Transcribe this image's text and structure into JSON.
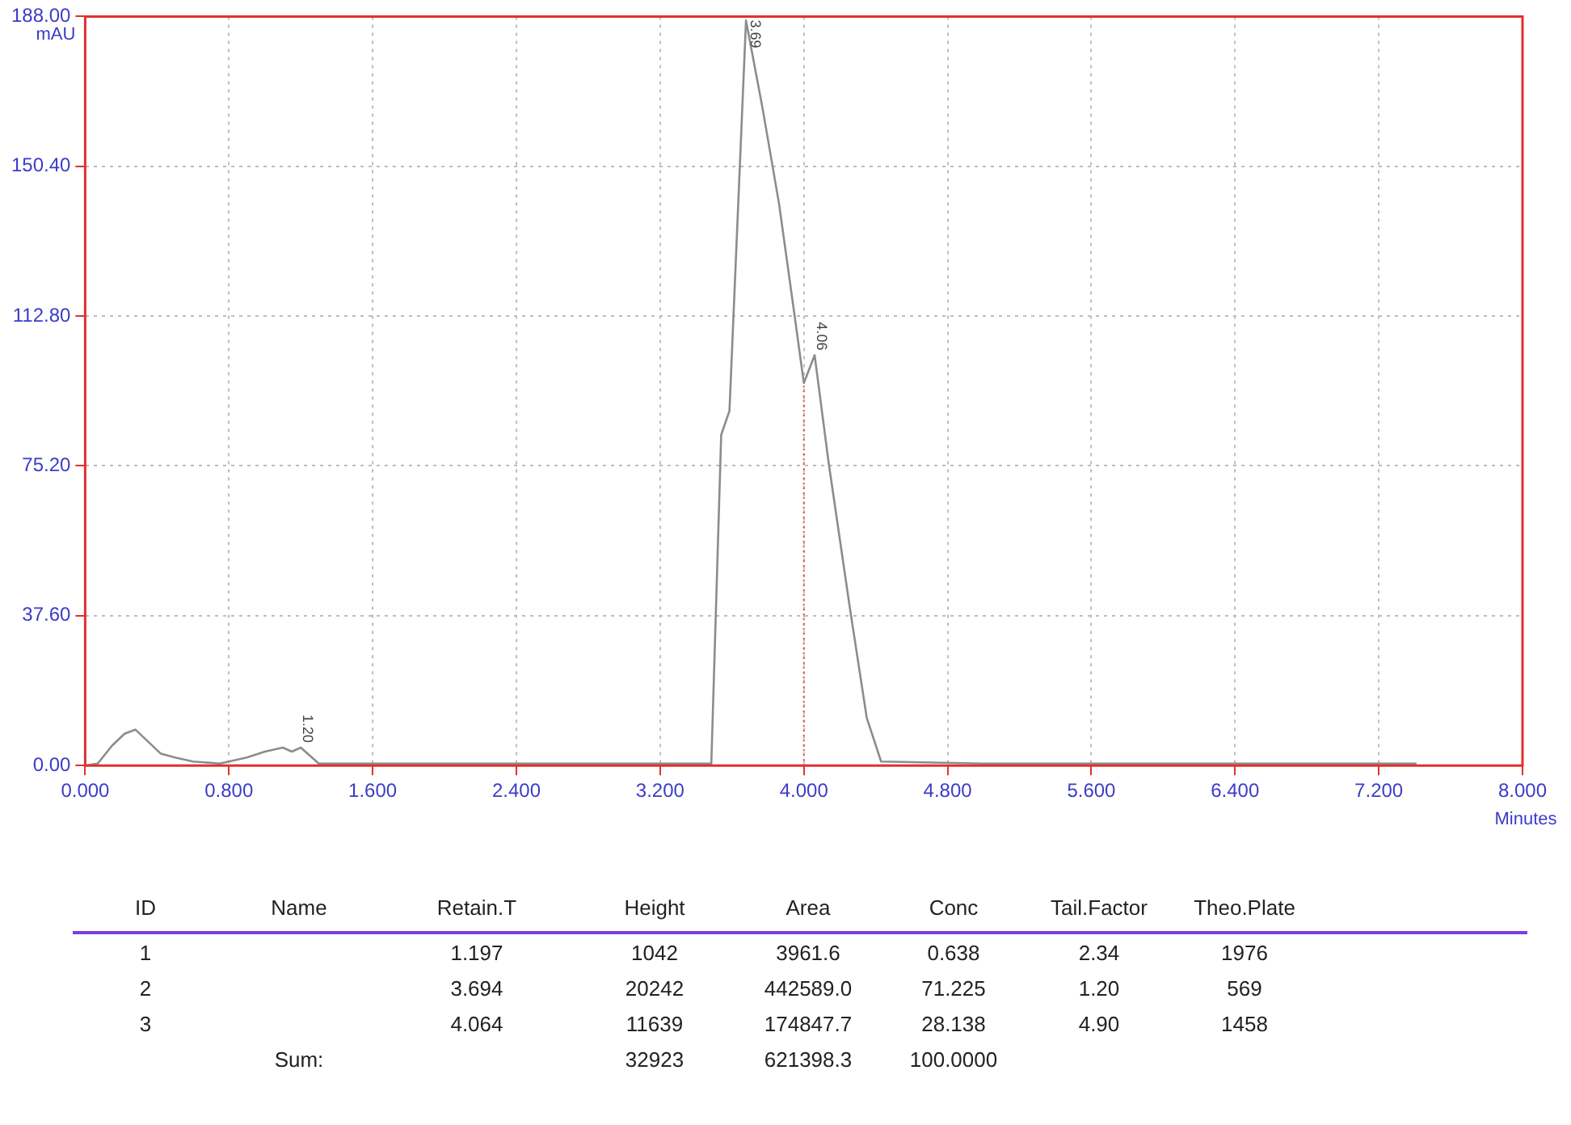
{
  "chart_data": [
    {
      "type": "line",
      "xlabel": "Minutes",
      "ylabel": "mAU",
      "x": [
        0,
        0.07,
        0.15,
        0.22,
        0.28,
        0.35,
        0.42,
        0.5,
        0.6,
        0.75,
        0.9,
        1.0,
        1.1,
        1.15,
        1.2,
        1.3,
        1.4,
        2.0,
        3.0,
        3.485,
        3.54,
        3.586,
        3.678,
        3.77,
        3.862,
        3.936,
        4.0,
        4.06,
        4.138,
        4.258,
        4.35,
        4.43,
        5.0,
        6.0,
        7.41
      ],
      "series": [
        {
          "color": "#8c8c8c",
          "values": [
            0,
            0.5,
            5,
            8,
            9,
            6,
            3,
            2,
            1,
            0.5,
            2,
            3.5,
            4.5,
            3.5,
            4.5,
            0.5,
            0.5,
            0.5,
            0.5,
            0.5,
            83,
            89,
            187,
            165,
            141,
            117,
            96,
            103,
            76,
            39,
            12,
            1,
            0.5,
            0.5,
            0.5
          ]
        }
      ],
      "xlim": [
        0,
        8
      ],
      "ylim": [
        0,
        188
      ],
      "xticks": [
        {
          "value": 0,
          "label": "0.000"
        },
        {
          "value": 0.8,
          "label": "0.800"
        },
        {
          "value": 1.6,
          "label": "1.600"
        },
        {
          "value": 2.4,
          "label": "2.400"
        },
        {
          "value": 3.2,
          "label": "3.200"
        },
        {
          "value": 4,
          "label": "4.000"
        },
        {
          "value": 4.8,
          "label": "4.800"
        },
        {
          "value": 5.6,
          "label": "5.600"
        },
        {
          "value": 6.4,
          "label": "6.400"
        },
        {
          "value": 7.2,
          "label": "7.200"
        },
        {
          "value": 8,
          "label": "8.000"
        }
      ],
      "yticks": [
        {
          "value": 0,
          "label": "0.00"
        },
        {
          "value": 37.6,
          "label": "37.60"
        },
        {
          "value": 75.2,
          "label": "75.20"
        },
        {
          "value": 112.8,
          "label": "112.80"
        },
        {
          "value": 150.4,
          "label": "150.40"
        },
        {
          "value": 188,
          "label": "188.00"
        }
      ],
      "grid": true,
      "marker": "none",
      "line_style": "solid",
      "ref_lines": [
        {
          "axis": "x",
          "value": 4.0,
          "color": "#e04040",
          "line_style": "dotted"
        }
      ],
      "annotations": [
        {
          "text": "1.20",
          "x": 1.2,
          "y": 4.5
        },
        {
          "text": "3.69",
          "x": 3.69,
          "y": 187
        },
        {
          "text": "4.06",
          "x": 4.06,
          "y": 103
        }
      ]
    },
    {
      "type": "other",
      "categories": [
        "ID",
        "Name",
        "Retain.T",
        "Height",
        "Area",
        "Conc",
        "Tail.Factor",
        "Theo.Plate"
      ],
      "cell_labels": [
        [
          "1",
          null,
          "1.197",
          "1042",
          "3961.6",
          "0.638",
          "2.34",
          "1976"
        ],
        [
          "2",
          null,
          "3.694",
          "20242",
          "442589.0",
          "71.225",
          "1.20",
          "569"
        ],
        [
          "3",
          null,
          "4.064",
          "11639",
          "174847.7",
          "28.138",
          "4.90",
          "1458"
        ],
        [
          null,
          "Sum:",
          null,
          "32923",
          "621398.3",
          "100.0000",
          null,
          null
        ]
      ]
    }
  ]
}
